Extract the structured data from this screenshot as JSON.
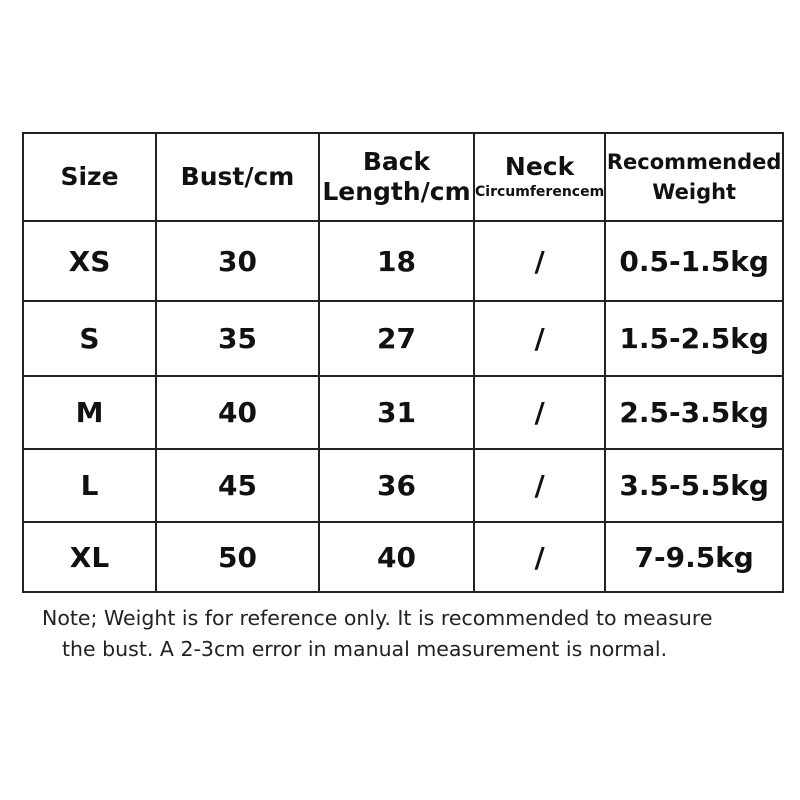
{
  "table": {
    "headers": {
      "size": "Size",
      "bust": "Bust/cm",
      "back_line1": "Back",
      "back_line2": "Length/cm",
      "neck_line1": "Neck",
      "neck_line2": "Circumferencem",
      "weight_line1": "Recommended",
      "weight_line2": "Weight"
    },
    "rows": [
      {
        "size": "XS",
        "bust": "30",
        "back": "18",
        "neck": "/",
        "weight": "0.5-1.5kg"
      },
      {
        "size": "S",
        "bust": "35",
        "back": "27",
        "neck": "/",
        "weight": "1.5-2.5kg"
      },
      {
        "size": "M",
        "bust": "40",
        "back": "31",
        "neck": "/",
        "weight": "2.5-3.5kg"
      },
      {
        "size": "L",
        "bust": "45",
        "back": "36",
        "neck": "/",
        "weight": "3.5-5.5kg"
      },
      {
        "size": "XL",
        "bust": "50",
        "back": "40",
        "neck": "/",
        "weight": "7-9.5kg"
      }
    ]
  },
  "note": {
    "line1": "Note; Weight is for reference only. It is recommended to measure",
    "line2": "the bust. A 2-3cm error in manual measurement is normal."
  }
}
